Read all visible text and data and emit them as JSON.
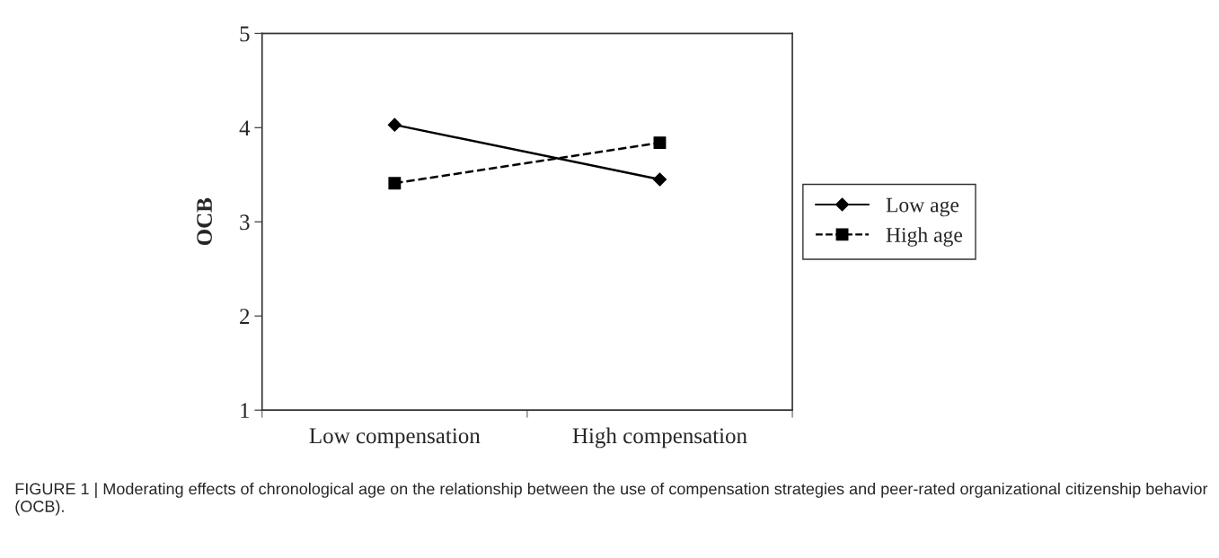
{
  "chart_data": {
    "type": "line",
    "categories": [
      "Low compensation",
      "High compensation"
    ],
    "ylabel": "OCB",
    "ylim": [
      1,
      5
    ],
    "yticks": [
      1,
      2,
      3,
      4,
      5
    ],
    "series": [
      {
        "name": "Low age",
        "color": "#000000",
        "values": [
          4.03,
          3.45
        ],
        "marker": "diamond",
        "line_style": "solid"
      },
      {
        "name": "High age",
        "color": "#000000",
        "values": [
          3.41,
          3.84
        ],
        "marker": "square",
        "line_style": "dashed"
      }
    ],
    "legend": "right",
    "grid": false,
    "annotations": [
      "FIGURE 1 | Moderating effects of chronological age on the relationship between the use of compensation strategies and peer-rated organizational citizenship behavior (OCB)."
    ]
  }
}
